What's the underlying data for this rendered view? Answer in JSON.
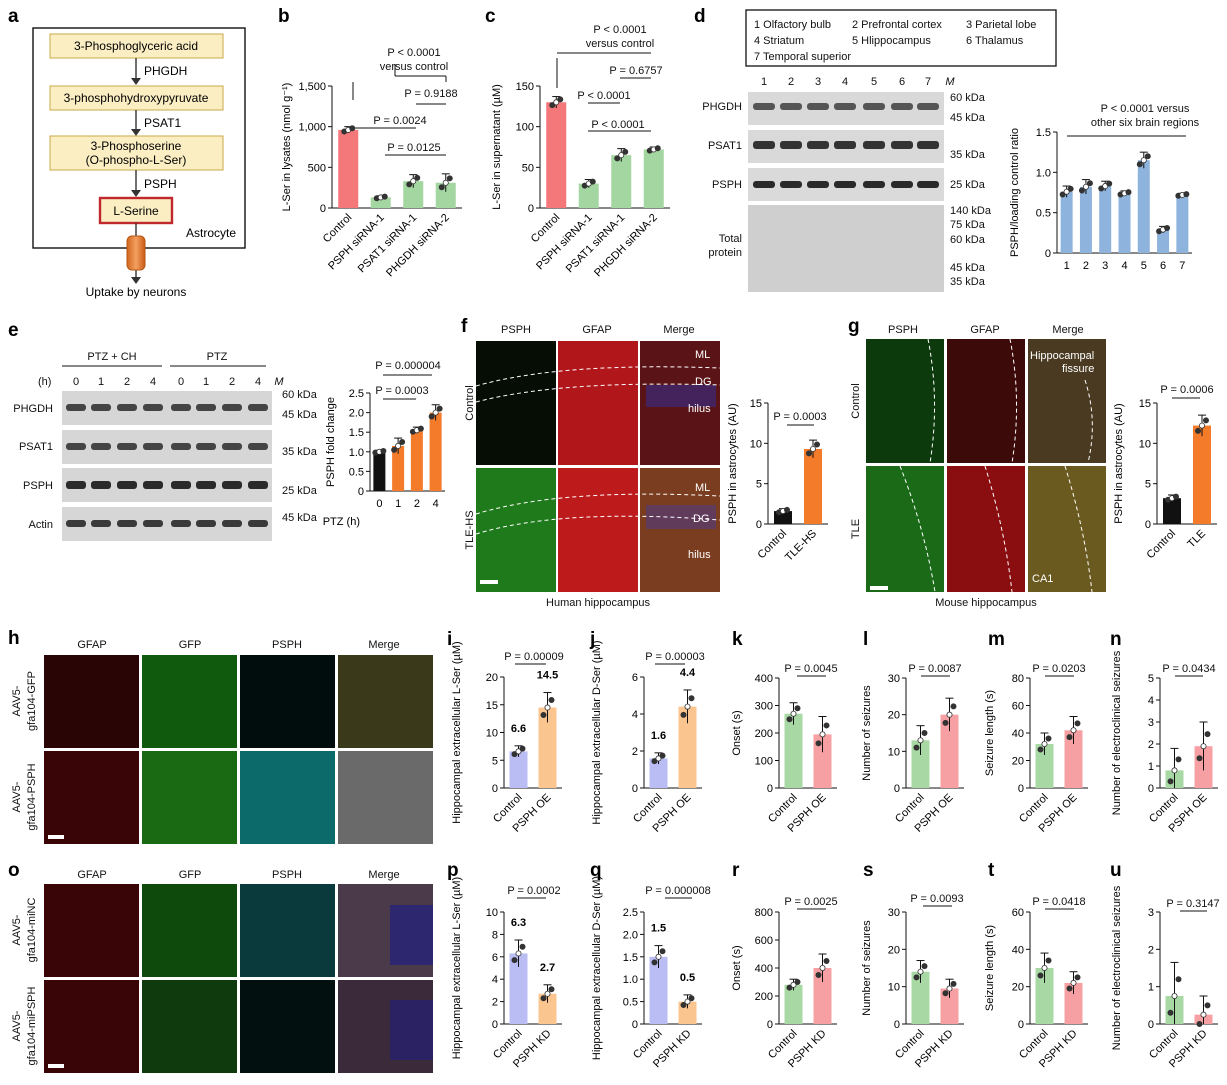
{
  "panels": {
    "a": {
      "letter": "a",
      "steps": [
        "3-Phosphoglyceric acid",
        "3-phosphohydroxypyruvate",
        "3-Phosphoserine",
        "(O-phospho-L-Ser)",
        "L-Serine"
      ],
      "enzymes": [
        "PHGDH",
        "PSAT1",
        "PSPH"
      ],
      "cell_label": "Astrocyte",
      "uptake": "Uptake by neurons"
    },
    "b": {
      "letter": "b",
      "stats": [
        "P < 0.0001",
        "versus control",
        "P = 0.9188",
        "P = 0.0024",
        "P = 0.0125"
      ]
    },
    "c": {
      "letter": "c",
      "stats": [
        "P < 0.0001",
        "versus control",
        "P = 0.6757",
        "P < 0.0001",
        "P < 0.0001"
      ]
    },
    "d": {
      "letter": "d",
      "legend": [
        "1 Olfactory bulb",
        "2 Prefrontal cortex",
        "3 Parietal lobe",
        "4 Striatum",
        "5 Hlippocampus",
        "6 Thalamus",
        "7 Temporal superior"
      ],
      "lanes": [
        "1",
        "2",
        "3",
        "4",
        "5",
        "6",
        "7",
        "M"
      ],
      "rows": [
        "PHGDH",
        "PSAT1",
        "PSPH",
        "Total",
        "protein"
      ],
      "markers": [
        "60 kDa",
        "45 kDa",
        "35 kDa",
        "25 kDa",
        "140 kDa",
        "75 kDa",
        "60 kDa",
        "45 kDa",
        "35 kDa"
      ],
      "stats": [
        "P < 0.0001 versus",
        "other six brain regions"
      ]
    },
    "e": {
      "letter": "e",
      "groups": [
        "PTZ + CH",
        "PTZ"
      ],
      "h_label": "(h)",
      "lanes": [
        "0",
        "1",
        "2",
        "4",
        "0",
        "1",
        "2",
        "4",
        "M"
      ],
      "rows": [
        "PHGDH",
        "PSAT1",
        "PSPH",
        "Actin"
      ],
      "markers": [
        "60 kDa",
        "45 kDa",
        "35 kDa",
        "25 kDa",
        "45 kDa"
      ],
      "stats": [
        "P = 0.000004",
        "P = 0.0003"
      ]
    },
    "f": {
      "letter": "f",
      "cols": [
        "PSPH",
        "GFAP",
        "Merge"
      ],
      "rows": [
        "Control",
        "TLE-HS"
      ],
      "regions": [
        "ML",
        "DG",
        "hilus",
        "ML",
        "DG",
        "hilus"
      ],
      "caption": "Human hippocampus",
      "stats": [
        "P = 0.0003"
      ]
    },
    "g": {
      "letter": "g",
      "cols": [
        "PSPH",
        "GFAP",
        "Merge"
      ],
      "rows": [
        "Control",
        "TLE"
      ],
      "regions": [
        "Hippocampal",
        "fissure",
        "CA1"
      ],
      "caption": "Mouse hippocampus",
      "stats": [
        "P = 0.0006"
      ]
    },
    "h": {
      "letter": "h",
      "cols": [
        "GFAP",
        "GFP",
        "PSPH",
        "Merge"
      ],
      "rows": [
        "AAV5-",
        "gfa104-GFP",
        "AAV5-",
        "gfa104-PSPH"
      ]
    },
    "o": {
      "letter": "o",
      "cols": [
        "GFAP",
        "GFP",
        "PSPH",
        "Merge"
      ],
      "rows": [
        "AAV5-",
        "gfa104-miNC",
        "AAV5-",
        "gfa104-miPSPH"
      ]
    },
    "i": {
      "letter": "i",
      "stats": [
        "P = 0.00009"
      ]
    },
    "j": {
      "letter": "j",
      "stats": [
        "P = 0.00003"
      ]
    },
    "k": {
      "letter": "k",
      "stats": [
        "P = 0.0045"
      ]
    },
    "l": {
      "letter": "l",
      "stats": [
        "P = 0.0087"
      ]
    },
    "m": {
      "letter": "m",
      "stats": [
        "P = 0.0203"
      ]
    },
    "n": {
      "letter": "n",
      "stats": [
        "P = 0.0434"
      ]
    },
    "p": {
      "letter": "p",
      "stats": [
        "P = 0.0002"
      ]
    },
    "q": {
      "letter": "q",
      "stats": [
        "P = 0.000008"
      ]
    },
    "r": {
      "letter": "r",
      "stats": [
        "P = 0.0025"
      ]
    },
    "s": {
      "letter": "s",
      "stats": [
        "P = 0.0093"
      ]
    },
    "t": {
      "letter": "t",
      "stats": [
        "P = 0.0418"
      ]
    },
    "u": {
      "letter": "u",
      "stats": [
        "P = 0.3147"
      ]
    }
  },
  "chart_data": [
    {
      "id": "b",
      "type": "bar",
      "ylabel": "L-Ser in lysates (nmol g⁻¹)",
      "categories": [
        "Control",
        "PSPH siRNA-1",
        "PSAT1 siRNA-1",
        "PHGDH siRNA-2"
      ],
      "values": [
        960,
        130,
        330,
        310
      ],
      "errors": [
        40,
        20,
        80,
        110
      ],
      "ylim": [
        0,
        1500
      ],
      "yticks": [
        "0",
        "500",
        "1,000",
        "1,500"
      ],
      "colors": [
        "#f4777a",
        "#a3d6a0",
        "#a3d6a0",
        "#a3d6a0"
      ]
    },
    {
      "id": "c",
      "type": "bar",
      "ylabel": "L-Ser in supernatant (µM)",
      "categories": [
        "Control",
        "PSPH siRNA-1",
        "PSAT1 siRNA-1",
        "PHGDH siRNA-2"
      ],
      "values": [
        130,
        30,
        65,
        72
      ],
      "errors": [
        7,
        5,
        8,
        3
      ],
      "ylim": [
        0,
        150
      ],
      "yticks": [
        "0",
        "50",
        "100",
        "150"
      ],
      "colors": [
        "#f4777a",
        "#a3d6a0",
        "#a3d6a0",
        "#a3d6a0"
      ]
    },
    {
      "id": "d",
      "type": "bar",
      "ylabel": "PSPH/loading control ratio",
      "categories": [
        "1",
        "2",
        "3",
        "4",
        "5",
        "6",
        "7"
      ],
      "values": [
        0.76,
        0.82,
        0.83,
        0.74,
        1.15,
        0.29,
        0.72
      ],
      "errors": [
        0.07,
        0.09,
        0.06,
        0.03,
        0.1,
        0.04,
        0.02
      ],
      "ylim": [
        0,
        1.5
      ],
      "yticks": [
        "0",
        "0.5",
        "1.0",
        "1.5"
      ],
      "colors": [
        "#8eb3dd"
      ]
    },
    {
      "id": "e",
      "type": "bar",
      "xlabel": "PTZ (h)",
      "ylabel": "PSPH fold change",
      "categories": [
        "0",
        "1",
        "2",
        "4"
      ],
      "values": [
        1.0,
        1.15,
        1.55,
        2.0
      ],
      "errors": [
        0.04,
        0.2,
        0.08,
        0.2
      ],
      "ylim": [
        0,
        2.5
      ],
      "yticks": [
        "0",
        "0.5",
        "1.0",
        "1.5",
        "2.0",
        "2.5"
      ],
      "colors": [
        "#111111",
        "#f47b2a",
        "#f47b2a",
        "#f47b2a"
      ]
    },
    {
      "id": "f",
      "type": "bar",
      "ylabel": "PSPH in astrocytes (AU)",
      "categories": [
        "Control",
        "TLE-HS"
      ],
      "values": [
        1.6,
        9.3
      ],
      "errors": [
        0.3,
        1.1
      ],
      "ylim": [
        0,
        15
      ],
      "yticks": [
        "0",
        "5",
        "10",
        "15"
      ],
      "colors": [
        "#111111",
        "#f47b2a"
      ]
    },
    {
      "id": "g",
      "type": "bar",
      "ylabel": "PSPH in astrocytes (AU)",
      "categories": [
        "Control",
        "TLE"
      ],
      "values": [
        3.2,
        12.2
      ],
      "errors": [
        0.4,
        1.3
      ],
      "ylim": [
        0,
        15
      ],
      "yticks": [
        "0",
        "5",
        "10",
        "15"
      ],
      "colors": [
        "#111111",
        "#f47b2a"
      ]
    },
    {
      "id": "i",
      "type": "bar",
      "ylabel": "Hippocampal extracellular L-Ser (µM)",
      "categories": [
        "Control",
        "PSPH OE"
      ],
      "values": [
        6.6,
        14.5
      ],
      "value_labels": [
        "6.6",
        "14.5"
      ],
      "errors": [
        1.0,
        2.7
      ],
      "ylim": [
        0,
        20
      ],
      "yticks": [
        "0",
        "5",
        "10",
        "15",
        "20"
      ],
      "colors": [
        "#b9bdf4",
        "#fbc58f"
      ]
    },
    {
      "id": "j",
      "type": "bar",
      "ylabel": "Hippocampal extracellular D-Ser (µM)",
      "categories": [
        "Control",
        "PSPH OE"
      ],
      "values": [
        1.6,
        4.4
      ],
      "value_labels": [
        "1.6",
        "4.4"
      ],
      "errors": [
        0.3,
        0.9
      ],
      "ylim": [
        0,
        6
      ],
      "yticks": [
        "0",
        "2",
        "4",
        "6"
      ],
      "colors": [
        "#b9bdf4",
        "#fbc58f"
      ]
    },
    {
      "id": "k",
      "type": "bar",
      "ylabel": "Onset (s)",
      "categories": [
        "Control",
        "PSPH OE"
      ],
      "values": [
        270,
        195
      ],
      "errors": [
        40,
        65
      ],
      "ylim": [
        0,
        400
      ],
      "yticks": [
        "0",
        "100",
        "200",
        "300",
        "400"
      ],
      "colors": [
        "#a8d8a4",
        "#f7a0a3"
      ]
    },
    {
      "id": "l",
      "type": "bar",
      "ylabel": "Number of seizures",
      "categories": [
        "Control",
        "PSPH OE"
      ],
      "values": [
        13,
        20
      ],
      "errors": [
        4,
        4.5
      ],
      "ylim": [
        0,
        30
      ],
      "yticks": [
        "0",
        "10",
        "20",
        "30"
      ],
      "colors": [
        "#a8d8a4",
        "#f7a0a3"
      ]
    },
    {
      "id": "m",
      "type": "bar",
      "ylabel": "Seizure length (s)",
      "categories": [
        "Control",
        "PSPH OE"
      ],
      "values": [
        32,
        42
      ],
      "errors": [
        8,
        10
      ],
      "ylim": [
        0,
        80
      ],
      "yticks": [
        "0",
        "20",
        "40",
        "60",
        "80"
      ],
      "colors": [
        "#a8d8a4",
        "#f7a0a3"
      ]
    },
    {
      "id": "n",
      "type": "bar",
      "ylabel": "Number of electroclinical seizures",
      "categories": [
        "Control",
        "PSPH OE"
      ],
      "values": [
        0.8,
        1.9
      ],
      "errors": [
        1.0,
        1.1
      ],
      "ylim": [
        0,
        5
      ],
      "yticks": [
        "0",
        "1",
        "2",
        "3",
        "4",
        "5"
      ],
      "colors": [
        "#a8d8a4",
        "#f7a0a3"
      ]
    },
    {
      "id": "p",
      "type": "bar",
      "ylabel": "Hippocampal extracellular L-Ser (µM)",
      "categories": [
        "Control",
        "PSPH KD"
      ],
      "values": [
        6.3,
        2.7
      ],
      "value_labels": [
        "6.3",
        "2.7"
      ],
      "errors": [
        1.2,
        0.8
      ],
      "ylim": [
        0,
        10
      ],
      "yticks": [
        "0",
        "2",
        "4",
        "6",
        "8",
        "10"
      ],
      "colors": [
        "#b9bdf4",
        "#fbc58f"
      ]
    },
    {
      "id": "q",
      "type": "bar",
      "ylabel": "Hippocampal extracellular D-Ser (µM)",
      "categories": [
        "Control",
        "PSPH KD"
      ],
      "values": [
        1.5,
        0.5
      ],
      "value_labels": [
        "1.5",
        "0.5"
      ],
      "errors": [
        0.25,
        0.15
      ],
      "ylim": [
        0,
        2.5
      ],
      "yticks": [
        "0",
        "0.5",
        "1.0",
        "1.5",
        "2.0",
        "2.5"
      ],
      "colors": [
        "#b9bdf4",
        "#fbc58f"
      ]
    },
    {
      "id": "r",
      "type": "bar",
      "ylabel": "Onset (s)",
      "categories": [
        "Control",
        "PSPH KD"
      ],
      "values": [
        280,
        400
      ],
      "errors": [
        40,
        100
      ],
      "ylim": [
        0,
        800
      ],
      "yticks": [
        "0",
        "200",
        "400",
        "600",
        "800"
      ],
      "colors": [
        "#a8d8a4",
        "#f7a0a3"
      ]
    },
    {
      "id": "s",
      "type": "bar",
      "ylabel": "Number of seizures",
      "categories": [
        "Control",
        "PSPH KD"
      ],
      "values": [
        14,
        9.5
      ],
      "errors": [
        3,
        2.5
      ],
      "ylim": [
        0,
        30
      ],
      "yticks": [
        "0",
        "10",
        "20",
        "30"
      ],
      "colors": [
        "#a8d8a4",
        "#f7a0a3"
      ]
    },
    {
      "id": "t",
      "type": "bar",
      "ylabel": "Seizure length (s)",
      "categories": [
        "Control",
        "PSPH KD"
      ],
      "values": [
        30,
        22
      ],
      "errors": [
        8,
        6
      ],
      "ylim": [
        0,
        60
      ],
      "yticks": [
        "0",
        "20",
        "40",
        "60"
      ],
      "colors": [
        "#a8d8a4",
        "#f7a0a3"
      ]
    },
    {
      "id": "u",
      "type": "bar",
      "ylabel": "Number of electroclinical seizures",
      "categories": [
        "Control",
        "PSPH KD"
      ],
      "values": [
        0.75,
        0.25
      ],
      "errors": [
        0.9,
        0.5
      ],
      "ylim": [
        0,
        3
      ],
      "yticks": [
        "0",
        "1",
        "2",
        "3"
      ],
      "colors": [
        "#a8d8a4",
        "#f7a0a3"
      ]
    }
  ]
}
